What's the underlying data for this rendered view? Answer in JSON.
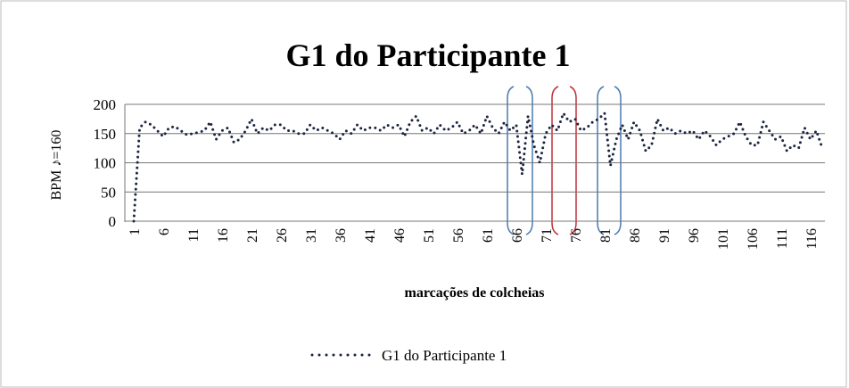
{
  "chart_data": {
    "type": "line",
    "title": "G1 do Participante 1",
    "y_label": "BPM ♪=160",
    "x_label": "marcações de colcheias",
    "categories": [
      "1",
      null,
      null,
      null,
      null,
      "6",
      null,
      null,
      null,
      null,
      "11",
      null,
      null,
      null,
      null,
      "16",
      null,
      null,
      null,
      null,
      "21",
      null,
      null,
      null,
      null,
      "26",
      null,
      null,
      null,
      null,
      "31",
      null,
      null,
      null,
      null,
      "36",
      null,
      null,
      null,
      null,
      "41",
      null,
      null,
      null,
      null,
      "46",
      null,
      null,
      null,
      null,
      "51",
      null,
      null,
      null,
      null,
      "56",
      null,
      null,
      null,
      null,
      "61",
      null,
      null,
      null,
      null,
      "66",
      null,
      null,
      null,
      null,
      "71",
      null,
      null,
      null,
      null,
      "76",
      null,
      null,
      null,
      null,
      "81",
      null,
      null,
      null,
      null,
      "86",
      null,
      null,
      null,
      null,
      "91",
      null,
      null,
      null,
      null,
      "96",
      null,
      null,
      null,
      null,
      "101",
      null,
      null,
      null,
      null,
      "106",
      null,
      null,
      null,
      null,
      "111",
      null,
      null,
      null,
      null,
      "116",
      null,
      null
    ],
    "series": [
      {
        "name": "G1 do Participante 1",
        "color": "#1c2541",
        "values": [
          0,
          160,
          170,
          165,
          155,
          145,
          160,
          162,
          155,
          148,
          150,
          152,
          155,
          170,
          140,
          155,
          160,
          135,
          140,
          155,
          175,
          150,
          160,
          155,
          165,
          165,
          155,
          155,
          150,
          150,
          165,
          155,
          160,
          155,
          150,
          140,
          155,
          150,
          165,
          155,
          160,
          160,
          155,
          165,
          160,
          165,
          145,
          170,
          180,
          155,
          160,
          150,
          165,
          155,
          160,
          170,
          150,
          155,
          165,
          150,
          180,
          160,
          150,
          170,
          155,
          165,
          80,
          180,
          130,
          100,
          150,
          165,
          155,
          185,
          170,
          175,
          155,
          160,
          170,
          175,
          185,
          95,
          140,
          165,
          140,
          170,
          155,
          120,
          130,
          175,
          155,
          160,
          150,
          155,
          150,
          155,
          140,
          155,
          145,
          130,
          140,
          145,
          150,
          170,
          145,
          130,
          130,
          170,
          155,
          140,
          145,
          120,
          130,
          125,
          160,
          140,
          155,
          125
        ]
      }
    ],
    "ylim": [
      0,
      200
    ],
    "yticks": [
      0,
      50,
      100,
      150,
      200
    ],
    "grid": true,
    "legend": "bottom"
  }
}
